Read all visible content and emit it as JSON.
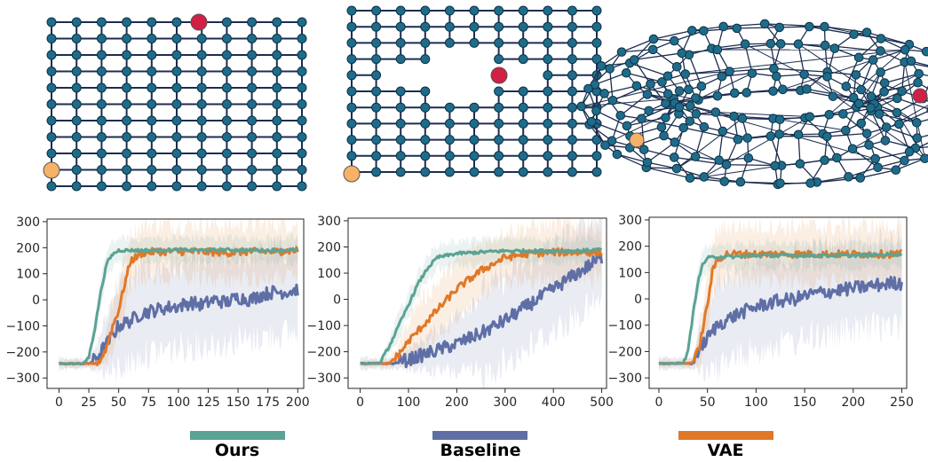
{
  "colors": {
    "ours": "#5ba394",
    "baseline": "#5f6fa6",
    "vae": "#e07828",
    "node": "#1f6b8a",
    "edge": "#1e2d4f",
    "start": "#f7b267",
    "goal": "#d21f46"
  },
  "environments": [
    {
      "kind": "grid",
      "desc": "Graph"
    },
    {
      "kind": "grid-with-holes",
      "desc": "Graph"
    },
    {
      "kind": "torus",
      "desc": "Graph"
    }
  ],
  "legend": [
    {
      "name": "Ours",
      "color": "#5ba394"
    },
    {
      "name": "Baseline",
      "color": "#5f6fa6"
    },
    {
      "name": "VAE",
      "color": "#e07828"
    }
  ],
  "chart_data": [
    {
      "type": "line",
      "xlim": [
        -10,
        205
      ],
      "ylim": [
        -340,
        310
      ],
      "xticks": [
        0,
        25,
        50,
        75,
        100,
        125,
        150,
        175,
        200
      ],
      "yticks": [
        -300,
        -200,
        -100,
        0,
        100,
        200,
        300
      ],
      "series": [
        {
          "name": "Ours",
          "x": [
            0,
            20,
            25,
            30,
            35,
            40,
            45,
            50,
            60,
            80,
            100,
            120,
            140,
            160,
            180,
            200
          ],
          "y": [
            -245,
            -245,
            -220,
            -110,
            30,
            140,
            175,
            190,
            190,
            190,
            192,
            190,
            192,
            190,
            190,
            192
          ]
        },
        {
          "name": "Baseline",
          "x": [
            0,
            25,
            30,
            35,
            40,
            50,
            60,
            70,
            80,
            90,
            100,
            110,
            120,
            130,
            140,
            150,
            160,
            170,
            180,
            190,
            200
          ],
          "y": [
            -245,
            -245,
            -230,
            -200,
            -170,
            -100,
            -80,
            -50,
            -40,
            -30,
            -25,
            -10,
            -20,
            0,
            -10,
            10,
            0,
            20,
            30,
            30,
            40
          ]
        },
        {
          "name": "VAE",
          "x": [
            0,
            30,
            35,
            40,
            45,
            50,
            55,
            60,
            70,
            80,
            100,
            120,
            140,
            160,
            180,
            200
          ],
          "y": [
            -245,
            -245,
            -230,
            -180,
            -100,
            -40,
            60,
            150,
            180,
            185,
            185,
            185,
            180,
            185,
            185,
            190
          ]
        }
      ]
    },
    {
      "type": "line",
      "xlim": [
        -25,
        510
      ],
      "ylim": [
        -340,
        310
      ],
      "xticks": [
        0,
        100,
        200,
        300,
        400,
        500
      ],
      "yticks": [
        -300,
        -200,
        -100,
        0,
        100,
        200,
        300
      ],
      "series": [
        {
          "name": "Ours",
          "x": [
            0,
            40,
            60,
            80,
            100,
            120,
            140,
            160,
            200,
            250,
            300,
            350,
            400,
            450,
            500
          ],
          "y": [
            -245,
            -245,
            -180,
            -100,
            -20,
            60,
            120,
            160,
            175,
            180,
            185,
            185,
            185,
            185,
            190
          ]
        },
        {
          "name": "Baseline",
          "x": [
            0,
            70,
            100,
            150,
            200,
            250,
            300,
            350,
            400,
            450,
            500
          ],
          "y": [
            -245,
            -245,
            -230,
            -200,
            -170,
            -130,
            -80,
            -20,
            40,
            100,
            160
          ]
        },
        {
          "name": "VAE",
          "x": [
            0,
            60,
            80,
            100,
            150,
            200,
            250,
            300,
            350,
            400,
            450,
            500
          ],
          "y": [
            -245,
            -245,
            -210,
            -160,
            -60,
            40,
            110,
            160,
            175,
            180,
            180,
            180
          ]
        }
      ]
    },
    {
      "type": "line",
      "xlim": [
        -10,
        255
      ],
      "ylim": [
        -340,
        310
      ],
      "xticks": [
        0,
        50,
        100,
        150,
        200,
        250
      ],
      "yticks": [
        -300,
        -200,
        -100,
        0,
        100,
        200,
        300
      ],
      "series": [
        {
          "name": "Ours",
          "x": [
            0,
            25,
            30,
            35,
            40,
            45,
            50,
            60,
            80,
            100,
            150,
            200,
            250
          ],
          "y": [
            -245,
            -245,
            -200,
            -60,
            60,
            130,
            155,
            160,
            160,
            165,
            165,
            165,
            170
          ]
        },
        {
          "name": "Baseline",
          "x": [
            0,
            35,
            40,
            50,
            60,
            80,
            100,
            120,
            140,
            160,
            180,
            200,
            220,
            240,
            250
          ],
          "y": [
            -245,
            -245,
            -200,
            -150,
            -100,
            -60,
            -30,
            -10,
            0,
            20,
            30,
            40,
            50,
            60,
            60
          ]
        },
        {
          "name": "VAE",
          "x": [
            0,
            30,
            35,
            40,
            45,
            50,
            55,
            60,
            70,
            100,
            150,
            200,
            250
          ],
          "y": [
            -245,
            -245,
            -240,
            -200,
            -120,
            -20,
            100,
            150,
            170,
            170,
            170,
            170,
            170
          ]
        }
      ]
    }
  ]
}
